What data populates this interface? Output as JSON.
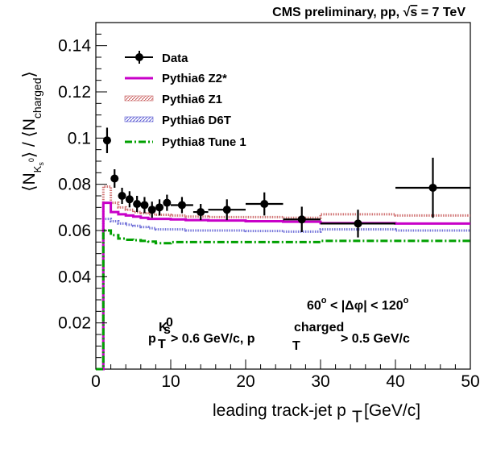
{
  "chart_data": {
    "type": "scatter",
    "header": {
      "text_before_sqrt": "CMS preliminary, pp, ",
      "sqrt_symbol": "√",
      "sqrt_arg": "s",
      "text_after_sqrt": " = 7 TeV"
    },
    "xlabel": {
      "text": "leading track-jet p",
      "subscript": "T",
      "unit": " [GeV/c]"
    },
    "ylabel": {
      "open_bracket": "⟨N",
      "sub_main": "K",
      "sub_sub": "s",
      "sub_sup": "0",
      "middle": "⟩ / ⟨N",
      "sub_charged": "charged",
      "close_bracket": "⟩"
    },
    "xlim": [
      0,
      50
    ],
    "ylim": [
      0,
      0.15
    ],
    "xticks": [
      0,
      10,
      20,
      30,
      40,
      50
    ],
    "xtick_labels": [
      "0",
      "10",
      "20",
      "30",
      "40",
      "50"
    ],
    "yticks": [
      0.02,
      0.04,
      0.06,
      0.08,
      0.1,
      0.12,
      0.14
    ],
    "ytick_labels": [
      "0.02",
      "0.04",
      "0.06",
      "0.08",
      "0.1",
      "0.12",
      "0.14"
    ],
    "legend_position": "top-left",
    "legend": [
      {
        "label": "Data",
        "style": "marker",
        "color": "#000000"
      },
      {
        "label": "Pythia6 Z2*",
        "style": "solid",
        "color": "#c800c8"
      },
      {
        "label": "Pythia6 Z1",
        "style": "hatched",
        "color": "#c85a5a"
      },
      {
        "label": "Pythia6 D6T",
        "style": "hatched",
        "color": "#5a5ad2"
      },
      {
        "label": "Pythia8 Tune 1",
        "style": "dashdot",
        "color": "#00a000"
      }
    ],
    "annotations": {
      "dphi": {
        "lower": "60",
        "degree": "o",
        "lt1": " < |",
        "delta_phi": "Δφ",
        "lt2": "| < ",
        "upper": "120",
        "degree2": "o"
      },
      "cuts": {
        "p1": "p",
        "p1_sub": "T",
        "p1_sup_main": "K",
        "p1_sup_sub": "s",
        "p1_sup_sup": "0",
        "cut1": " > 0.6 GeV/c, p",
        "p2_sub": "T",
        "p2_sup": "charged",
        "cut2": " > 0.5 GeV/c"
      }
    },
    "data_points": [
      {
        "x": 1.5,
        "xerr": 0.5,
        "y": 0.099,
        "yerr": 0.0055
      },
      {
        "x": 2.5,
        "xerr": 0.5,
        "y": 0.0825,
        "yerr": 0.004
      },
      {
        "x": 3.5,
        "xerr": 0.5,
        "y": 0.075,
        "yerr": 0.0035
      },
      {
        "x": 4.5,
        "xerr": 0.5,
        "y": 0.0735,
        "yerr": 0.0035
      },
      {
        "x": 5.5,
        "xerr": 0.5,
        "y": 0.0715,
        "yerr": 0.0035
      },
      {
        "x": 6.5,
        "xerr": 0.5,
        "y": 0.071,
        "yerr": 0.0035
      },
      {
        "x": 7.5,
        "xerr": 0.5,
        "y": 0.069,
        "yerr": 0.0035
      },
      {
        "x": 8.5,
        "xerr": 0.5,
        "y": 0.07,
        "yerr": 0.0035
      },
      {
        "x": 9.5,
        "xerr": 0.5,
        "y": 0.072,
        "yerr": 0.0035
      },
      {
        "x": 11.5,
        "xerr": 1.5,
        "y": 0.071,
        "yerr": 0.0035
      },
      {
        "x": 14.0,
        "xerr": 1.0,
        "y": 0.068,
        "yerr": 0.0035
      },
      {
        "x": 17.5,
        "xerr": 2.5,
        "y": 0.069,
        "yerr": 0.0045
      },
      {
        "x": 22.5,
        "xerr": 2.5,
        "y": 0.0715,
        "yerr": 0.005
      },
      {
        "x": 27.5,
        "xerr": 2.5,
        "y": 0.0648,
        "yerr": 0.0055
      },
      {
        "x": 35.0,
        "xerr": 5.0,
        "y": 0.063,
        "yerr": 0.006
      },
      {
        "x": 45.0,
        "xerr": 5.0,
        "y": 0.0785,
        "yerr": 0.013
      }
    ],
    "series": [
      {
        "name": "Pythia6 Z2*",
        "color": "#c800c8",
        "style": "solid",
        "bins": [
          [
            1,
            2,
            0.072
          ],
          [
            2,
            3,
            0.068
          ],
          [
            3,
            4,
            0.067
          ],
          [
            4,
            5,
            0.0665
          ],
          [
            5,
            6,
            0.066
          ],
          [
            6,
            7,
            0.0655
          ],
          [
            7,
            8,
            0.065
          ],
          [
            8,
            10,
            0.065
          ],
          [
            10,
            12,
            0.0648
          ],
          [
            12,
            15,
            0.0645
          ],
          [
            15,
            20,
            0.0643
          ],
          [
            20,
            25,
            0.064
          ],
          [
            25,
            30,
            0.0638
          ],
          [
            30,
            40,
            0.0632
          ],
          [
            40,
            50,
            0.063
          ]
        ]
      },
      {
        "name": "Pythia6 Z1",
        "color": "#c85a5a",
        "style": "hatched",
        "bins": [
          [
            1,
            2,
            0.079
          ],
          [
            2,
            3,
            0.072
          ],
          [
            3,
            4,
            0.07
          ],
          [
            4,
            5,
            0.069
          ],
          [
            5,
            6,
            0.068
          ],
          [
            6,
            7,
            0.0675
          ],
          [
            7,
            8,
            0.067
          ],
          [
            8,
            10,
            0.0668
          ],
          [
            10,
            12,
            0.0665
          ],
          [
            12,
            15,
            0.066
          ],
          [
            15,
            20,
            0.0658
          ],
          [
            20,
            25,
            0.0658
          ],
          [
            25,
            30,
            0.0655
          ],
          [
            30,
            40,
            0.067
          ],
          [
            40,
            50,
            0.0665
          ]
        ]
      },
      {
        "name": "Pythia6 D6T",
        "color": "#5a5ad2",
        "style": "hatched",
        "bins": [
          [
            1,
            2,
            0.065
          ],
          [
            2,
            3,
            0.064
          ],
          [
            3,
            4,
            0.063
          ],
          [
            4,
            5,
            0.0625
          ],
          [
            5,
            6,
            0.062
          ],
          [
            6,
            7,
            0.0615
          ],
          [
            7,
            8,
            0.061
          ],
          [
            8,
            10,
            0.0605
          ],
          [
            10,
            12,
            0.0605
          ],
          [
            12,
            15,
            0.06
          ],
          [
            15,
            20,
            0.06
          ],
          [
            20,
            25,
            0.0598
          ],
          [
            25,
            30,
            0.0595
          ],
          [
            30,
            40,
            0.0605
          ],
          [
            40,
            50,
            0.06
          ]
        ]
      },
      {
        "name": "Pythia8 Tune 1",
        "color": "#00a000",
        "style": "dashdot",
        "bins": [
          [
            1,
            2,
            0.06
          ],
          [
            2,
            3,
            0.058
          ],
          [
            3,
            4,
            0.0565
          ],
          [
            4,
            5,
            0.056
          ],
          [
            5,
            6,
            0.0558
          ],
          [
            6,
            7,
            0.0555
          ],
          [
            7,
            8,
            0.0552
          ],
          [
            8,
            10,
            0.0545
          ],
          [
            10,
            12,
            0.055
          ],
          [
            12,
            15,
            0.055
          ],
          [
            15,
            20,
            0.055
          ],
          [
            20,
            25,
            0.055
          ],
          [
            25,
            30,
            0.055
          ],
          [
            30,
            40,
            0.0555
          ],
          [
            40,
            50,
            0.0555
          ]
        ]
      }
    ]
  }
}
